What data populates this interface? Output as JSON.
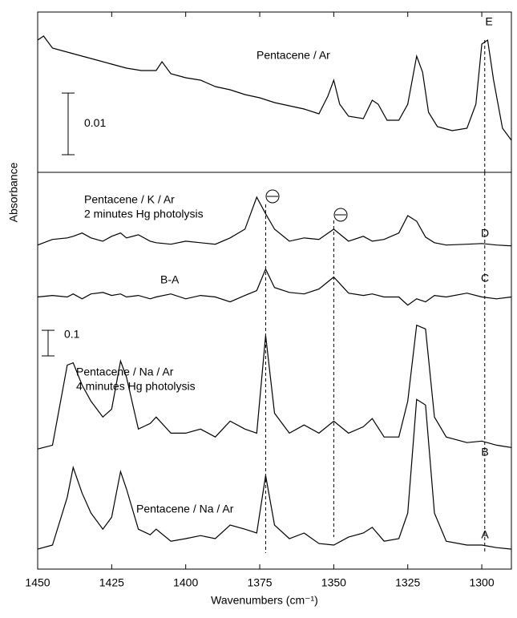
{
  "chart_data": [
    {
      "type": "line",
      "x": [
        1450,
        1448,
        1445,
        1440,
        1435,
        1430,
        1425,
        1420,
        1415,
        1410,
        1408,
        1405,
        1400,
        1395,
        1390,
        1385,
        1380,
        1375,
        1370,
        1365,
        1360,
        1355,
        1352,
        1350,
        1348,
        1345,
        1340,
        1337,
        1335,
        1332,
        1328,
        1325,
        1322,
        1320,
        1318,
        1315,
        1310,
        1305,
        1302,
        1300,
        1298,
        1296,
        1293,
        1290
      ],
      "xlim": [
        1450,
        1290
      ],
      "ylim": [
        0,
        0.026
      ],
      "xticks": [
        1450,
        1425,
        1400,
        1375,
        1350,
        1325,
        1300
      ],
      "scale_bar": 0.01,
      "vlines": [
        1299
      ],
      "series": [
        {
          "name": "E",
          "color": "#000000",
          "annotation": [
            "Pentacene / Ar"
          ],
          "values": [
            0.02145,
            0.0221,
            0.02015,
            0.0195,
            0.01885,
            0.0182,
            0.01755,
            0.0169,
            0.01651,
            0.01651,
            0.01794,
            0.01599,
            0.01534,
            0.01495,
            0.01391,
            0.01339,
            0.01261,
            0.01209,
            0.01131,
            0.01079,
            0.01027,
            0.00949,
            0.01235,
            0.01495,
            0.01105,
            0.0091,
            0.00871,
            0.0117,
            0.01105,
            0.00845,
            0.00845,
            0.01105,
            0.01885,
            0.01625,
            0.00975,
            0.00741,
            0.00676,
            0.00715,
            0.01105,
            0.0208,
            0.02145,
            0.01495,
            0.00715,
            0.0052
          ]
        }
      ]
    },
    {
      "type": "line",
      "x": [
        1450,
        1445,
        1440,
        1438,
        1435,
        1432,
        1428,
        1425,
        1422,
        1420,
        1416,
        1412,
        1410,
        1405,
        1400,
        1395,
        1390,
        1385,
        1380,
        1376,
        1373,
        1370,
        1365,
        1360,
        1355,
        1350,
        1345,
        1340,
        1337,
        1333,
        1328,
        1325,
        1322,
        1319,
        1316,
        1312,
        1305,
        1300,
        1295,
        1290
      ],
      "xlim": [
        1450,
        1290
      ],
      "ylim": [
        0,
        1.55
      ],
      "xticks": [
        1450,
        1425,
        1400,
        1375,
        1350,
        1325,
        1300
      ],
      "xlabel": "Wavenumbers (cm⁻¹)",
      "ylabel": "Absorbance",
      "scale_bar": 0.1,
      "vlines": [
        1373,
        1350,
        1299
      ],
      "series": [
        {
          "name": "A",
          "color": "#000000",
          "annotation": [
            "Pentacene / Na / Ar"
          ],
          "values": [
            0.078,
            0.094,
            0.281,
            0.397,
            0.297,
            0.219,
            0.156,
            0.203,
            0.381,
            0.313,
            0.156,
            0.134,
            0.156,
            0.109,
            0.119,
            0.131,
            0.119,
            0.172,
            0.156,
            0.141,
            0.366,
            0.172,
            0.119,
            0.141,
            0.1,
            0.094,
            0.125,
            0.141,
            0.163,
            0.109,
            0.119,
            0.219,
            0.663,
            0.641,
            0.219,
            0.109,
            0.094,
            0.094,
            0.084,
            0.078
          ]
        },
        {
          "name": "B",
          "color": "#000000",
          "annotation": [
            "Pentacene / Na / Ar",
            "4 minutes Hg photolysis"
          ],
          "values": [
            0.469,
            0.484,
            0.797,
            0.806,
            0.719,
            0.656,
            0.594,
            0.625,
            0.813,
            0.75,
            0.547,
            0.569,
            0.594,
            0.531,
            0.531,
            0.547,
            0.516,
            0.578,
            0.547,
            0.531,
            0.913,
            0.609,
            0.531,
            0.563,
            0.531,
            0.578,
            0.531,
            0.556,
            0.588,
            0.516,
            0.516,
            0.656,
            0.953,
            0.938,
            0.594,
            0.516,
            0.494,
            0.5,
            0.484,
            0.475
          ]
        },
        {
          "name": "C",
          "color": "#000000",
          "annotation": [
            "B-A"
          ],
          "values": [
            1.063,
            1.069,
            1.063,
            1.075,
            1.056,
            1.075,
            1.081,
            1.069,
            1.075,
            1.063,
            1.069,
            1.056,
            1.063,
            1.075,
            1.056,
            1.069,
            1.063,
            1.044,
            1.069,
            1.088,
            1.172,
            1.1,
            1.081,
            1.075,
            1.094,
            1.141,
            1.078,
            1.069,
            1.075,
            1.063,
            1.063,
            1.031,
            1.056,
            1.044,
            1.069,
            1.063,
            1.078,
            1.063,
            1.056,
            1.063
          ]
        },
        {
          "name": "D",
          "color": "#000000",
          "annotation": [
            "Pentacene / K / Ar",
            "2 minutes Hg photolysis"
          ],
          "values": [
            1.266,
            1.288,
            1.294,
            1.3,
            1.313,
            1.294,
            1.281,
            1.3,
            1.313,
            1.294,
            1.306,
            1.281,
            1.275,
            1.269,
            1.281,
            1.275,
            1.269,
            1.294,
            1.328,
            1.453,
            1.388,
            1.328,
            1.281,
            1.294,
            1.288,
            1.328,
            1.281,
            1.3,
            1.281,
            1.288,
            1.313,
            1.381,
            1.359,
            1.297,
            1.275,
            1.266,
            1.269,
            1.272,
            1.266,
            1.263
          ]
        }
      ]
    }
  ]
}
